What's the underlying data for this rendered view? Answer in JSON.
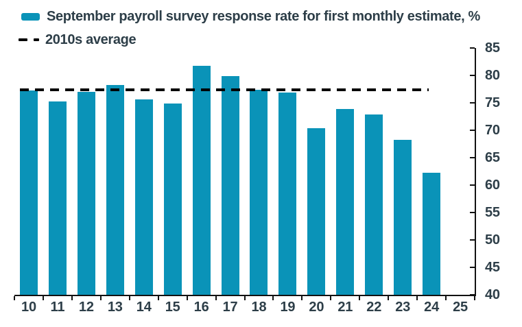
{
  "legend": {
    "series_label": "September payroll survey response rate for first monthly estimate, %",
    "average_label": "2010s average"
  },
  "colors": {
    "bar": "#0a93b8",
    "text": "#2d3e48",
    "axis": "#111111",
    "average_line": "#000000"
  },
  "chart_data": {
    "type": "bar",
    "title": "September payroll survey response rate for first monthly estimate, %",
    "categories": [
      "10",
      "11",
      "12",
      "13",
      "14",
      "15",
      "16",
      "17",
      "18",
      "19",
      "20",
      "21",
      "22",
      "23",
      "24",
      "25"
    ],
    "series": [
      {
        "name": "September payroll survey response rate for first monthly estimate, %",
        "values": [
          77.3,
          75.2,
          77.0,
          78.2,
          75.6,
          74.9,
          81.8,
          79.9,
          77.4,
          76.9,
          70.4,
          73.9,
          72.9,
          68.2,
          62.2,
          null
        ]
      }
    ],
    "reference_line": {
      "label": "2010s average",
      "value": 77.4,
      "style": "dashed"
    },
    "xlabel": "",
    "ylabel": "",
    "ylim": [
      40,
      85
    ],
    "yticks": [
      40,
      45,
      50,
      55,
      60,
      65,
      70,
      75,
      80,
      85
    ],
    "y_axis_position": "right",
    "grid": false,
    "legend_position": "top-left"
  }
}
